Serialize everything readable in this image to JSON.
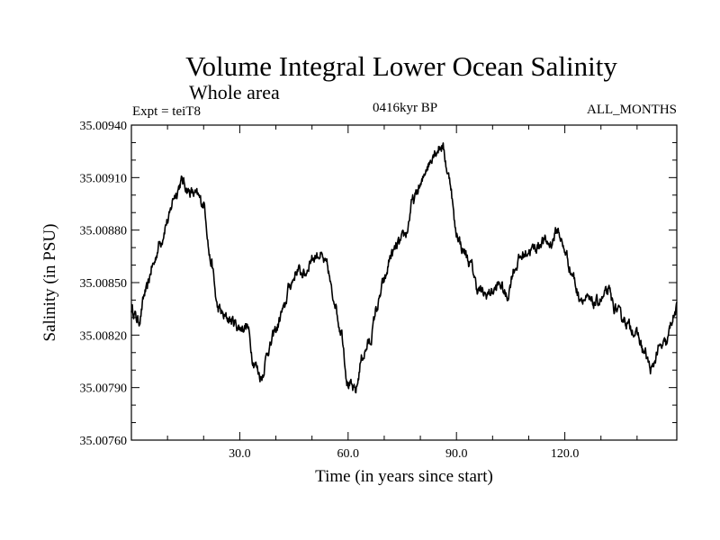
{
  "chart_data": {
    "type": "line",
    "title": "Volume Integral Lower Ocean Salinity",
    "subtitle": "Whole area",
    "experiment": "Expt = teiT8",
    "period": "0416kyr BP",
    "months": "ALL_MONTHS",
    "xlabel": "Time (in years since start)",
    "ylabel": "Salinity (in PSU)",
    "xlim": [
      0,
      151
    ],
    "ylim": [
      35.0076,
      35.0094
    ],
    "xticks": [
      30,
      60,
      90,
      120
    ],
    "xtick_labels": [
      "30.0",
      "60.0",
      "90.0",
      "120.0"
    ],
    "yticks": [
      35.0076,
      35.0079,
      35.0082,
      35.0085,
      35.0088,
      35.0091,
      35.0094
    ],
    "ytick_labels": [
      "35.00760",
      "35.00790",
      "35.00820",
      "35.00850",
      "35.00880",
      "35.00910",
      "35.00940"
    ],
    "series": [
      {
        "name": "Salinity",
        "x": [
          0,
          2,
          4,
          6,
          8,
          10,
          12,
          14,
          16,
          18,
          20,
          22,
          24,
          26,
          28,
          30,
          32,
          34,
          36,
          38,
          40,
          42,
          44,
          46,
          48,
          50,
          52,
          54,
          56,
          58,
          60,
          62,
          64,
          66,
          68,
          70,
          72,
          74,
          76,
          78,
          80,
          82,
          84,
          86,
          88,
          90,
          92,
          94,
          96,
          98,
          100,
          102,
          104,
          106,
          108,
          110,
          112,
          114,
          116,
          118,
          120,
          122,
          124,
          126,
          128,
          130,
          132,
          134,
          136,
          138,
          140,
          142,
          144,
          146,
          148,
          150,
          151
        ],
        "values": [
          35.00835,
          35.00828,
          35.00845,
          35.0086,
          35.00873,
          35.00885,
          35.009,
          35.00908,
          35.00902,
          35.009,
          35.00895,
          35.00862,
          35.00835,
          35.0083,
          35.00828,
          35.00824,
          35.00825,
          35.00804,
          35.00796,
          35.00812,
          35.00823,
          35.00834,
          35.00849,
          35.00857,
          35.00855,
          35.00864,
          35.00866,
          35.0086,
          35.00841,
          35.00823,
          35.00792,
          35.00788,
          35.00808,
          35.00816,
          35.00836,
          35.00851,
          35.00866,
          35.00872,
          35.00878,
          35.00897,
          35.00905,
          35.00917,
          35.00925,
          35.00928,
          35.0091,
          35.00878,
          35.00868,
          35.0086,
          35.00846,
          35.00843,
          35.00845,
          35.00849,
          35.00842,
          35.00858,
          35.00865,
          35.00868,
          35.0087,
          35.00874,
          35.00872,
          35.0088,
          35.00868,
          35.00855,
          35.00842,
          35.0084,
          35.00838,
          35.0084,
          35.00845,
          35.00835,
          35.0083,
          35.00825,
          35.0082,
          35.0081,
          35.008,
          35.00812,
          35.00815,
          35.0083,
          35.00835
        ]
      }
    ]
  }
}
